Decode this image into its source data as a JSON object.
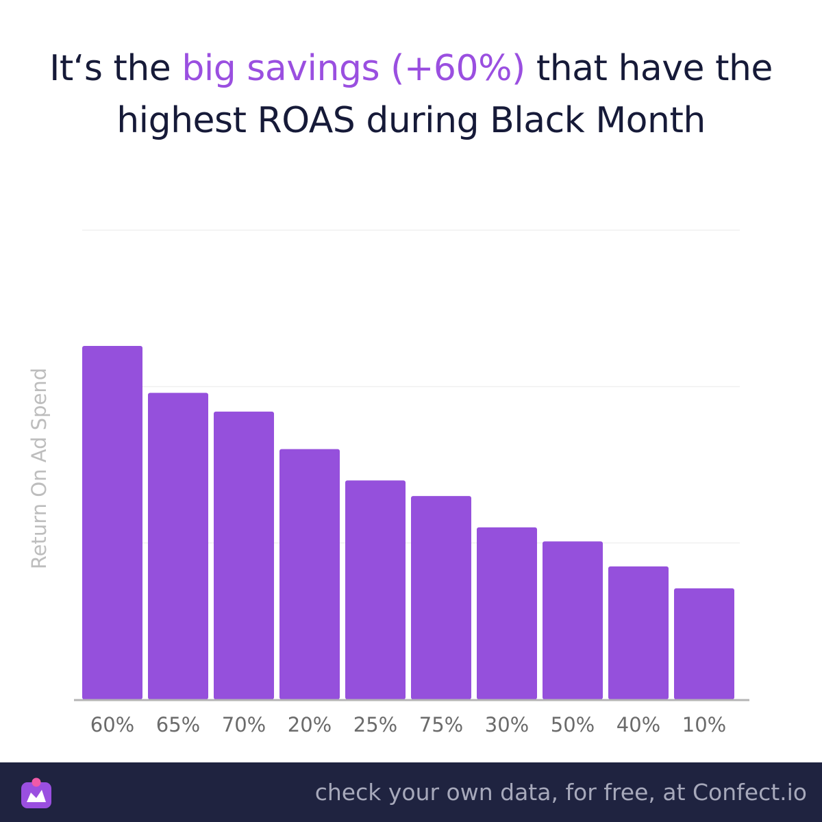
{
  "title": {
    "part1": "It‘s the ",
    "highlight": "big savings (+60%)",
    "part2": " that have the",
    "line2": "highest ROAS during Black Month"
  },
  "colors": {
    "bar": "#9550dc",
    "highlight": "#9a4fe0",
    "title": "#161a38",
    "footer_bg": "#1f2340",
    "axis": "#b5b5b5",
    "tick_label": "#6b6b6b",
    "ylabel": "#bdbdbd",
    "grid": "#f0f0f0"
  },
  "chart_data": {
    "type": "bar",
    "categories": [
      "60%",
      "65%",
      "70%",
      "20%",
      "25%",
      "75%",
      "30%",
      "50%",
      "40%",
      "10%"
    ],
    "values": [
      2.26,
      1.96,
      1.84,
      1.6,
      1.4,
      1.3,
      1.1,
      1.01,
      0.85,
      0.71
    ],
    "title": "It‘s the big savings (+60%) that have the highest ROAS during Black Month",
    "xlabel": "",
    "ylabel": "Return On Ad Spend",
    "ylim": [
      0,
      3
    ],
    "grid": true,
    "y_ticks_labeled": false
  },
  "footer": {
    "cta": "check your own data, for free, at Confect.io",
    "logo_icon": "confect-logo-icon"
  }
}
